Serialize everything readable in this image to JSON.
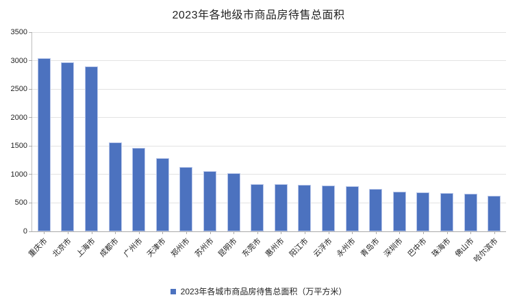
{
  "chart_data": {
    "type": "bar",
    "title": "2023年各地级市商品房待售总面积",
    "categories": [
      "重庆市",
      "北京市",
      "上海市",
      "成都市",
      "广州市",
      "天津市",
      "郑州市",
      "苏州市",
      "昆明市",
      "东莞市",
      "惠州市",
      "阳江市",
      "云浮市",
      "永州市",
      "青岛市",
      "深圳市",
      "巴中市",
      "珠海市",
      "佛山市",
      "哈尔滨市"
    ],
    "values": [
      3045,
      2975,
      2900,
      1565,
      1465,
      1290,
      1130,
      1060,
      1025,
      835,
      825,
      818,
      808,
      800,
      740,
      695,
      680,
      670,
      665,
      630
    ],
    "legend": [
      "2023年各城市商品房待售总面积（万平方米）"
    ],
    "xlabel": "",
    "ylabel": "",
    "ylim": [
      0,
      3500
    ],
    "yticks": [
      0,
      500,
      1000,
      1500,
      2000,
      2500,
      3000,
      3500
    ],
    "grid": true,
    "legend_position": "bottom",
    "x_label_rotation_deg": -45,
    "colors": {
      "bar_fill": "#4C72BF",
      "bar_border": "#B9C7EA",
      "gridline": "#E2E2E2",
      "axis_line": "#A9A9A9",
      "text": "#222222",
      "background": "#FFFFFF"
    }
  }
}
